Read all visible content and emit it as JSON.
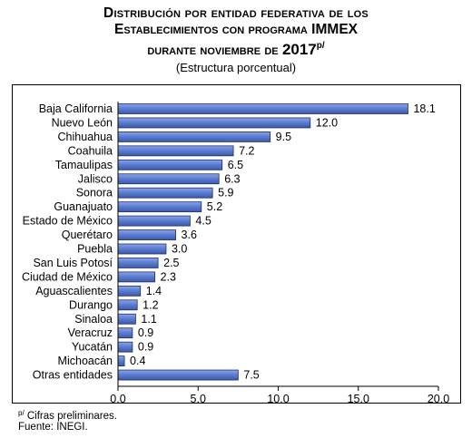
{
  "title": {
    "line1": "Distribución por entidad federativa de los",
    "line2": "Establecimientos con programa IMMEX",
    "line3": "durante noviembre de",
    "year": "2017",
    "superscript": "p/",
    "subtitle": "(Estructura porcentual)"
  },
  "footnotes": {
    "prelim_mark": "p/",
    "prelim_text": "Cifras preliminares.",
    "source": "Fuente: INEGI."
  },
  "chart_data": {
    "type": "bar",
    "orientation": "horizontal",
    "categories": [
      "Baja California",
      "Nuevo León",
      "Chihuahua",
      "Coahuila",
      "Tamaulipas",
      "Jalisco",
      "Sonora",
      "Guanajuato",
      "Estado de México",
      "Querétaro",
      "Puebla",
      "San Luis Potosí",
      "Ciudad de México",
      "Aguascalientes",
      "Durango",
      "Sinaloa",
      "Veracruz",
      "Yucatán",
      "Michoacán",
      "Otras entidades"
    ],
    "values": [
      18.1,
      12.0,
      9.5,
      7.2,
      6.5,
      6.3,
      5.9,
      5.2,
      4.5,
      3.6,
      3.0,
      2.5,
      2.3,
      1.4,
      1.2,
      1.1,
      0.9,
      0.9,
      0.4,
      7.5
    ],
    "value_labels": [
      "18.1",
      "12.0",
      "9.5",
      "7.2",
      "6.5",
      "6.3",
      "5.9",
      "5.2",
      "4.5",
      "3.6",
      "3.0",
      "2.5",
      "2.3",
      "1.4",
      "1.2",
      "1.1",
      "0.9",
      "0.9",
      "0.4",
      "7.5"
    ],
    "xlim": [
      0,
      20
    ],
    "xticks": [
      "0.0",
      "5.0",
      "10.0",
      "15.0",
      "20.0"
    ],
    "grid": false,
    "bar_color": "#5d7ed2",
    "bar_edge_color": "#1f2f6a"
  }
}
